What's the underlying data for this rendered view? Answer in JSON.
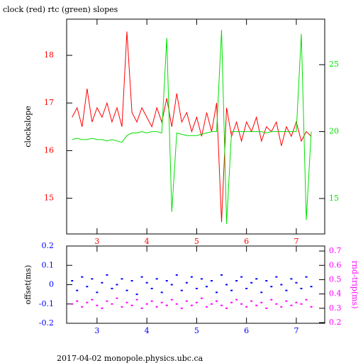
{
  "chart_data": [
    {
      "type": "line",
      "title": "clock (red) rtc (green) slopes",
      "y_label": "clockslope",
      "x": [
        2.5,
        2.6,
        2.7,
        2.8,
        2.9,
        3.0,
        3.1,
        3.2,
        3.3,
        3.4,
        3.5,
        3.6,
        3.7,
        3.8,
        3.9,
        4.0,
        4.1,
        4.2,
        4.3,
        4.4,
        4.5,
        4.6,
        4.7,
        4.8,
        4.9,
        5.0,
        5.1,
        5.2,
        5.3,
        5.4,
        5.5,
        5.6,
        5.7,
        5.8,
        5.9,
        6.0,
        6.1,
        6.2,
        6.3,
        6.4,
        6.5,
        6.6,
        6.7,
        6.8,
        6.9,
        7.0,
        7.1,
        7.2,
        7.3
      ],
      "series": [
        {
          "color": "#ff0000",
          "axis": "y",
          "values": [
            16.7,
            16.9,
            16.5,
            17.3,
            16.6,
            16.9,
            16.7,
            17.0,
            16.6,
            16.9,
            16.5,
            18.5,
            16.8,
            16.6,
            16.9,
            16.7,
            16.5,
            16.9,
            16.6,
            17.1,
            16.5,
            17.2,
            16.6,
            16.8,
            16.4,
            16.7,
            16.3,
            16.8,
            16.4,
            17.0,
            14.5,
            16.9,
            16.3,
            16.6,
            16.2,
            16.6,
            16.4,
            16.7,
            16.2,
            16.5,
            16.4,
            16.6,
            16.1,
            16.5,
            16.3,
            16.6,
            16.2,
            16.4,
            16.3
          ]
        },
        {
          "color": "#00e000",
          "axis": "y2",
          "values": [
            19.4,
            19.5,
            19.4,
            19.4,
            19.5,
            19.4,
            19.4,
            19.3,
            19.4,
            19.3,
            19.2,
            19.7,
            19.9,
            19.9,
            20.0,
            19.9,
            20.0,
            20.0,
            19.9,
            27.0,
            14.0,
            19.9,
            19.8,
            19.7,
            19.7,
            19.7,
            19.8,
            19.9,
            20.0,
            20.0,
            27.6,
            13.1,
            20.0,
            20.0,
            20.0,
            20.0,
            20.0,
            20.0,
            20.0,
            19.9,
            20.0,
            20.0,
            20.0,
            20.0,
            20.0,
            20.0,
            27.3,
            13.4,
            20.0
          ]
        }
      ],
      "xlim": [
        2.39,
        7.57
      ],
      "xticks": [
        3,
        4,
        5,
        6,
        7
      ],
      "x_tick_color": "#ff0000",
      "ylim": [
        14.25,
        18.76
      ],
      "yticks": [
        15,
        16,
        17,
        18
      ],
      "y_tick_color": "#ff0000",
      "y2lim": [
        12.35,
        28.4
      ],
      "y2ticks": [
        15,
        20,
        25
      ],
      "y2_tick_color": "#00e000"
    },
    {
      "type": "scatter",
      "y_label": "offset(ms)",
      "y2_label": "rnd-trip(ms)",
      "x": [
        2.5,
        2.6,
        2.7,
        2.8,
        2.9,
        3.0,
        3.1,
        3.2,
        3.3,
        3.4,
        3.5,
        3.6,
        3.7,
        3.8,
        3.9,
        4.0,
        4.1,
        4.2,
        4.3,
        4.4,
        4.5,
        4.6,
        4.7,
        4.8,
        4.9,
        5.0,
        5.1,
        5.2,
        5.3,
        5.4,
        5.5,
        5.6,
        5.7,
        5.8,
        5.9,
        6.0,
        6.1,
        6.2,
        6.3,
        6.4,
        6.5,
        6.6,
        6.7,
        6.8,
        6.9,
        7.0,
        7.1,
        7.2,
        7.3
      ],
      "series": [
        {
          "color": "#0000ff",
          "axis": "y",
          "values": [
            0.02,
            -0.03,
            0.04,
            -0.01,
            0.03,
            -0.04,
            0.01,
            0.05,
            -0.02,
            0.0,
            0.03,
            -0.03,
            0.02,
            -0.05,
            0.04,
            0.01,
            -0.02,
            0.03,
            -0.04,
            0.02,
            0.0,
            0.05,
            -0.03,
            0.01,
            0.04,
            -0.02,
            0.03,
            -0.01,
            0.02,
            -0.04,
            0.05,
            0.0,
            -0.03,
            0.02,
            0.04,
            -0.02,
            0.01,
            0.03,
            -0.04,
            0.02,
            -0.01,
            0.04,
            0.0,
            -0.03,
            0.03,
            0.01,
            -0.02,
            0.04,
            -0.01
          ]
        },
        {
          "color": "#ff00ff",
          "axis": "y2",
          "values": [
            0.33,
            0.35,
            0.31,
            0.34,
            0.36,
            0.32,
            0.3,
            0.35,
            0.33,
            0.37,
            0.31,
            0.34,
            0.32,
            0.36,
            0.3,
            0.33,
            0.35,
            0.31,
            0.34,
            0.32,
            0.36,
            0.33,
            0.3,
            0.35,
            0.32,
            0.34,
            0.37,
            0.31,
            0.33,
            0.35,
            0.32,
            0.3,
            0.34,
            0.36,
            0.33,
            0.31,
            0.35,
            0.32,
            0.34,
            0.3,
            0.36,
            0.33,
            0.31,
            0.35,
            0.32,
            0.34,
            0.33,
            0.36,
            0.31
          ]
        }
      ],
      "xlim": [
        2.39,
        7.57
      ],
      "xticks": [
        3,
        4,
        5,
        6,
        7
      ],
      "x_tick_color": "#0000ff",
      "ylim": [
        -0.2,
        0.2
      ],
      "yticks": [
        -0.2,
        -0.1,
        0,
        0.1,
        0.2
      ],
      "y_tick_color": "#0000ff",
      "y2lim": [
        0.195,
        0.735
      ],
      "y2ticks": [
        0.2,
        0.3,
        0.4,
        0.5,
        0.6,
        0.7
      ],
      "y2_tick_color": "#ff00ff"
    }
  ],
  "footer": "2017-04-02 monopole.physics.ubc.ca"
}
